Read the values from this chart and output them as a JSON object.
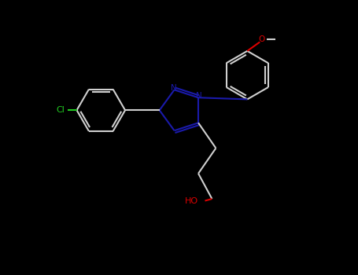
{
  "bg_color": "#000000",
  "bond_color": "#d0d0d0",
  "N_color": "#1a1aaa",
  "O_color": "#dd0000",
  "Cl_color": "#22cc22",
  "lw": 1.5,
  "fig_width": 4.55,
  "fig_height": 3.5,
  "dpi": 100,
  "xlim": [
    0,
    9.1
  ],
  "ylim": [
    0,
    7.0
  ]
}
